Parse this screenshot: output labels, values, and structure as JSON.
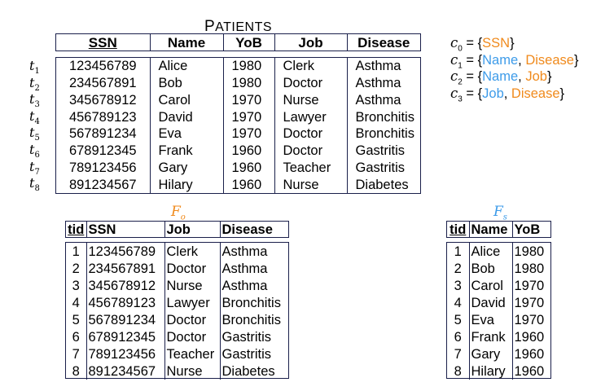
{
  "patients": {
    "title": "Patients",
    "title_first": "P",
    "title_rest": "ATIENTS",
    "columns": [
      "SSN",
      "Name",
      "YoB",
      "Job",
      "Disease"
    ],
    "row_labels": [
      "t",
      "t",
      "t",
      "t",
      "t",
      "t",
      "t",
      "t"
    ],
    "row_label_subs": [
      "1",
      "2",
      "3",
      "4",
      "5",
      "6",
      "7",
      "8"
    ],
    "rows": [
      [
        "123456789",
        "Alice",
        "1980",
        "Clerk",
        "Asthma"
      ],
      [
        "234567891",
        "Bob",
        "1980",
        "Doctor",
        "Asthma"
      ],
      [
        "345678912",
        "Carol",
        "1970",
        "Nurse",
        "Asthma"
      ],
      [
        "456789123",
        "David",
        "1970",
        "Lawyer",
        "Bronchitis"
      ],
      [
        "567891234",
        "Eva",
        "1970",
        "Doctor",
        "Bronchitis"
      ],
      [
        "678912345",
        "Frank",
        "1960",
        "Doctor",
        "Gastritis"
      ],
      [
        "789123456",
        "Gary",
        "1960",
        "Teacher",
        "Gastritis"
      ],
      [
        "891234567",
        "Hilary",
        "1960",
        "Nurse",
        "Diabetes"
      ]
    ]
  },
  "constraints": [
    {
      "var": "c",
      "sub": "0",
      "eq": " = {",
      "attrs": [
        {
          "text": "SSN",
          "color": "orange"
        }
      ],
      "close": "}"
    },
    {
      "var": "c",
      "sub": "1",
      "eq": " = {",
      "attrs": [
        {
          "text": "Name",
          "color": "blue"
        },
        {
          "text": "Disease",
          "color": "orange"
        }
      ],
      "close": "}"
    },
    {
      "var": "c",
      "sub": "2",
      "eq": " = {",
      "attrs": [
        {
          "text": "Name",
          "color": "blue"
        },
        {
          "text": "Job",
          "color": "orange"
        }
      ],
      "close": "}"
    },
    {
      "var": "c",
      "sub": "3",
      "eq": " = {",
      "attrs": [
        {
          "text": "Job",
          "color": "blue"
        },
        {
          "text": "Disease",
          "color": "orange"
        }
      ],
      "close": "}"
    }
  ],
  "colors": {
    "orange": "#f08a1c",
    "blue": "#3d9be9",
    "border": "#1a1f4a"
  },
  "fragment_o": {
    "name": "F",
    "sub": "o",
    "columns": [
      "tid",
      "SSN",
      "Job",
      "Disease"
    ],
    "rows": [
      [
        "1",
        "123456789",
        "Clerk",
        "Asthma"
      ],
      [
        "2",
        "234567891",
        "Doctor",
        "Asthma"
      ],
      [
        "3",
        "345678912",
        "Nurse",
        "Asthma"
      ],
      [
        "4",
        "456789123",
        "Lawyer",
        "Bronchitis"
      ],
      [
        "5",
        "567891234",
        "Doctor",
        "Bronchitis"
      ],
      [
        "6",
        "678912345",
        "Doctor",
        "Gastritis"
      ],
      [
        "7",
        "789123456",
        "Teacher",
        "Gastritis"
      ],
      [
        "8",
        "891234567",
        "Nurse",
        "Diabetes"
      ]
    ]
  },
  "fragment_s": {
    "name": "F",
    "sub": "s",
    "columns": [
      "tid",
      "Name",
      "YoB"
    ],
    "rows": [
      [
        "1",
        "Alice",
        "1980"
      ],
      [
        "2",
        "Bob",
        "1980"
      ],
      [
        "3",
        "Carol",
        "1970"
      ],
      [
        "4",
        "David",
        "1970"
      ],
      [
        "5",
        "Eva",
        "1970"
      ],
      [
        "6",
        "Frank",
        "1960"
      ],
      [
        "7",
        "Gary",
        "1960"
      ],
      [
        "8",
        "Hilary",
        "1960"
      ]
    ]
  }
}
